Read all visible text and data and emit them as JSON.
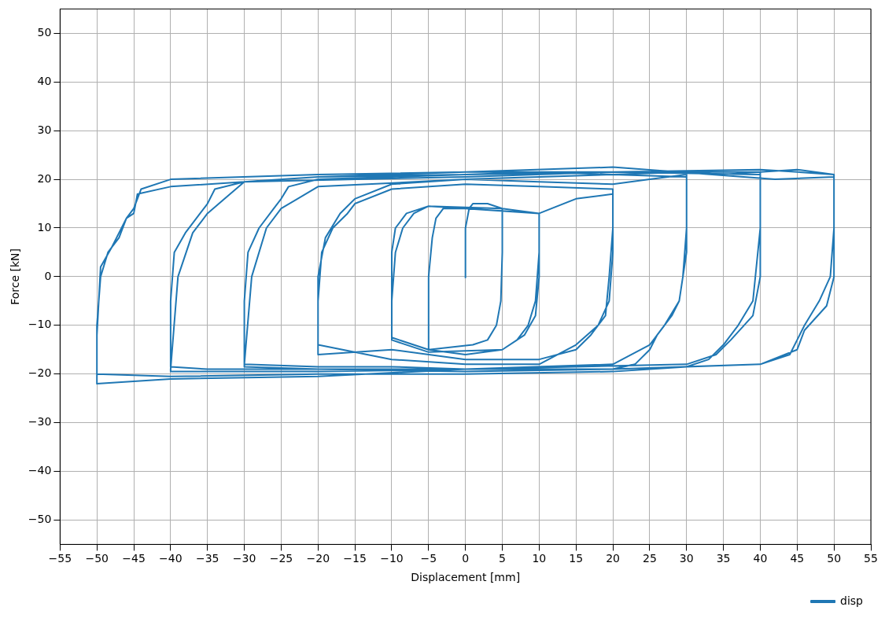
{
  "chart_data": {
    "type": "line",
    "xlabel": "Displacement [mm]",
    "ylabel": "Force [kN]",
    "xlim": [
      -55,
      55
    ],
    "ylim": [
      -55,
      55
    ],
    "xticks": [
      {
        "value": -55,
        "label": "−55"
      },
      {
        "value": -50,
        "label": "−50"
      },
      {
        "value": -45,
        "label": "−45"
      },
      {
        "value": -40,
        "label": "−40"
      },
      {
        "value": -35,
        "label": "−35"
      },
      {
        "value": -30,
        "label": "−30"
      },
      {
        "value": -25,
        "label": "−25"
      },
      {
        "value": -20,
        "label": "−20"
      },
      {
        "value": -15,
        "label": "−15"
      },
      {
        "value": -10,
        "label": "−10"
      },
      {
        "value": -5,
        "label": "−5"
      },
      0,
      5,
      10,
      15,
      20,
      25,
      30,
      35,
      40,
      45,
      50,
      55
    ],
    "yticks": [
      {
        "value": -50,
        "label": "−50"
      },
      {
        "value": -40,
        "label": "−40"
      },
      {
        "value": -30,
        "label": "−30"
      },
      {
        "value": -20,
        "label": "−20"
      },
      {
        "value": -10,
        "label": "−10"
      },
      0,
      10,
      20,
      30,
      40,
      50
    ],
    "grid": true,
    "legend": "bottom right",
    "series": [
      {
        "name": "disp",
        "color": "#1f77b4",
        "x": [
          0,
          0,
          0.5,
          1,
          3,
          5,
          5,
          4.8,
          4.2,
          3,
          1,
          -5,
          -5,
          -4.5,
          -4,
          -3,
          0,
          5,
          10,
          10,
          9.5,
          8.5,
          7,
          5,
          0,
          -5,
          -10,
          -10,
          -9.5,
          -8.5,
          -7,
          -5,
          0,
          10,
          10,
          9.5,
          8,
          5,
          -5,
          -10,
          -10,
          -9.5,
          -8,
          -5,
          5,
          10,
          15,
          20,
          20,
          19.5,
          19,
          17,
          15,
          10,
          0,
          -10,
          -20,
          -20,
          -19.5,
          -18,
          -16,
          -15,
          -10,
          0,
          10,
          20,
          20,
          19.5,
          18,
          15,
          10,
          0,
          -10,
          -20,
          -20,
          -19,
          -17,
          -15,
          -10,
          0,
          10,
          20,
          25,
          30,
          30,
          29.5,
          29,
          28,
          26,
          25,
          23,
          20,
          10,
          0,
          -10,
          -20,
          -30,
          -30,
          -29.5,
          -28,
          -26,
          -25,
          -24,
          -20,
          -10,
          0,
          10,
          20,
          30,
          30,
          29,
          27,
          25,
          20,
          0,
          -20,
          -30,
          -30,
          -29,
          -27,
          -25,
          -20,
          0,
          20,
          30,
          35,
          40,
          40,
          39,
          37,
          35,
          33,
          30,
          20,
          0,
          -20,
          -35,
          -40,
          -40,
          -39.5,
          -38,
          -36,
          -35,
          -34,
          -30,
          -20,
          0,
          20,
          40,
          40,
          39,
          36,
          34,
          30,
          0,
          -20,
          -40,
          -40,
          -39,
          -37,
          -35,
          -30,
          0,
          20,
          40,
          45,
          50,
          50,
          49.5,
          48,
          46,
          45,
          44,
          40,
          30,
          20,
          0,
          -20,
          -40,
          -50,
          -50,
          -49.5,
          -48.5,
          -47,
          -46,
          -45,
          -44.5,
          -40,
          -30,
          -20,
          0,
          20,
          40,
          50,
          50,
          49,
          46,
          45,
          40,
          20,
          0,
          -20,
          -40,
          -50,
          -50,
          -49.5,
          -48,
          -46,
          -45,
          -44,
          -40,
          -20,
          0,
          20,
          42,
          50
        ],
        "values": [
          -0.3,
          10,
          14,
          15,
          15,
          14,
          5,
          -5,
          -10,
          -13,
          -14,
          -15,
          0,
          8,
          12,
          14,
          14,
          13.5,
          13,
          5,
          -5,
          -10,
          -13,
          -15,
          -16,
          -15,
          -12.5,
          -5,
          5,
          10,
          13,
          14.5,
          14,
          13,
          0,
          -8,
          -12,
          -15,
          -15.5,
          -13,
          5,
          10,
          13,
          14.5,
          14,
          13,
          16,
          17,
          10,
          0,
          -8,
          -12,
          -15,
          -17,
          -17,
          -15,
          -16,
          -5,
          5,
          10,
          13,
          15,
          18,
          19,
          18.5,
          18,
          5,
          -5,
          -10,
          -14,
          -18,
          -18,
          -17,
          -14,
          0,
          8,
          13,
          16,
          19,
          20,
          19.5,
          19,
          20,
          21,
          10,
          0,
          -5,
          -8,
          -12,
          -15,
          -18,
          -19,
          -19,
          -19,
          -18.5,
          -18.5,
          -18,
          -5,
          5,
          10,
          14,
          16,
          18.5,
          20,
          20.5,
          21,
          21.5,
          21,
          20.5,
          5,
          -5,
          -10,
          -14,
          -18,
          -19,
          -19,
          -18.5,
          -18,
          0,
          10,
          14,
          18.5,
          20,
          21,
          21.5,
          21,
          21.5,
          10,
          -5,
          -10,
          -14,
          -17,
          -18.5,
          -19,
          -19.5,
          -19,
          -19,
          -18.5,
          -5,
          5,
          9,
          13,
          15,
          18,
          19.5,
          20.5,
          21.5,
          21.5,
          21,
          0,
          -8,
          -13,
          -16,
          -18,
          -19,
          -19.5,
          -19.5,
          -19,
          0,
          9,
          13,
          19.5,
          20.5,
          21.5,
          21.5,
          22,
          21,
          10,
          0,
          -5,
          -10,
          -13,
          -16,
          -18,
          -18.5,
          -19.5,
          -20,
          -20,
          -20.5,
          -20,
          -10,
          0,
          5,
          8,
          12,
          13,
          17,
          18.5,
          19.5,
          20.5,
          21,
          21.5,
          22,
          21,
          0,
          -6,
          -11,
          -15,
          -18,
          -19,
          -19,
          -20.5,
          -21,
          -22,
          -12,
          2,
          6,
          12,
          14,
          18,
          20,
          21,
          21.5,
          22.5,
          20,
          20.5
        ]
      }
    ]
  }
}
